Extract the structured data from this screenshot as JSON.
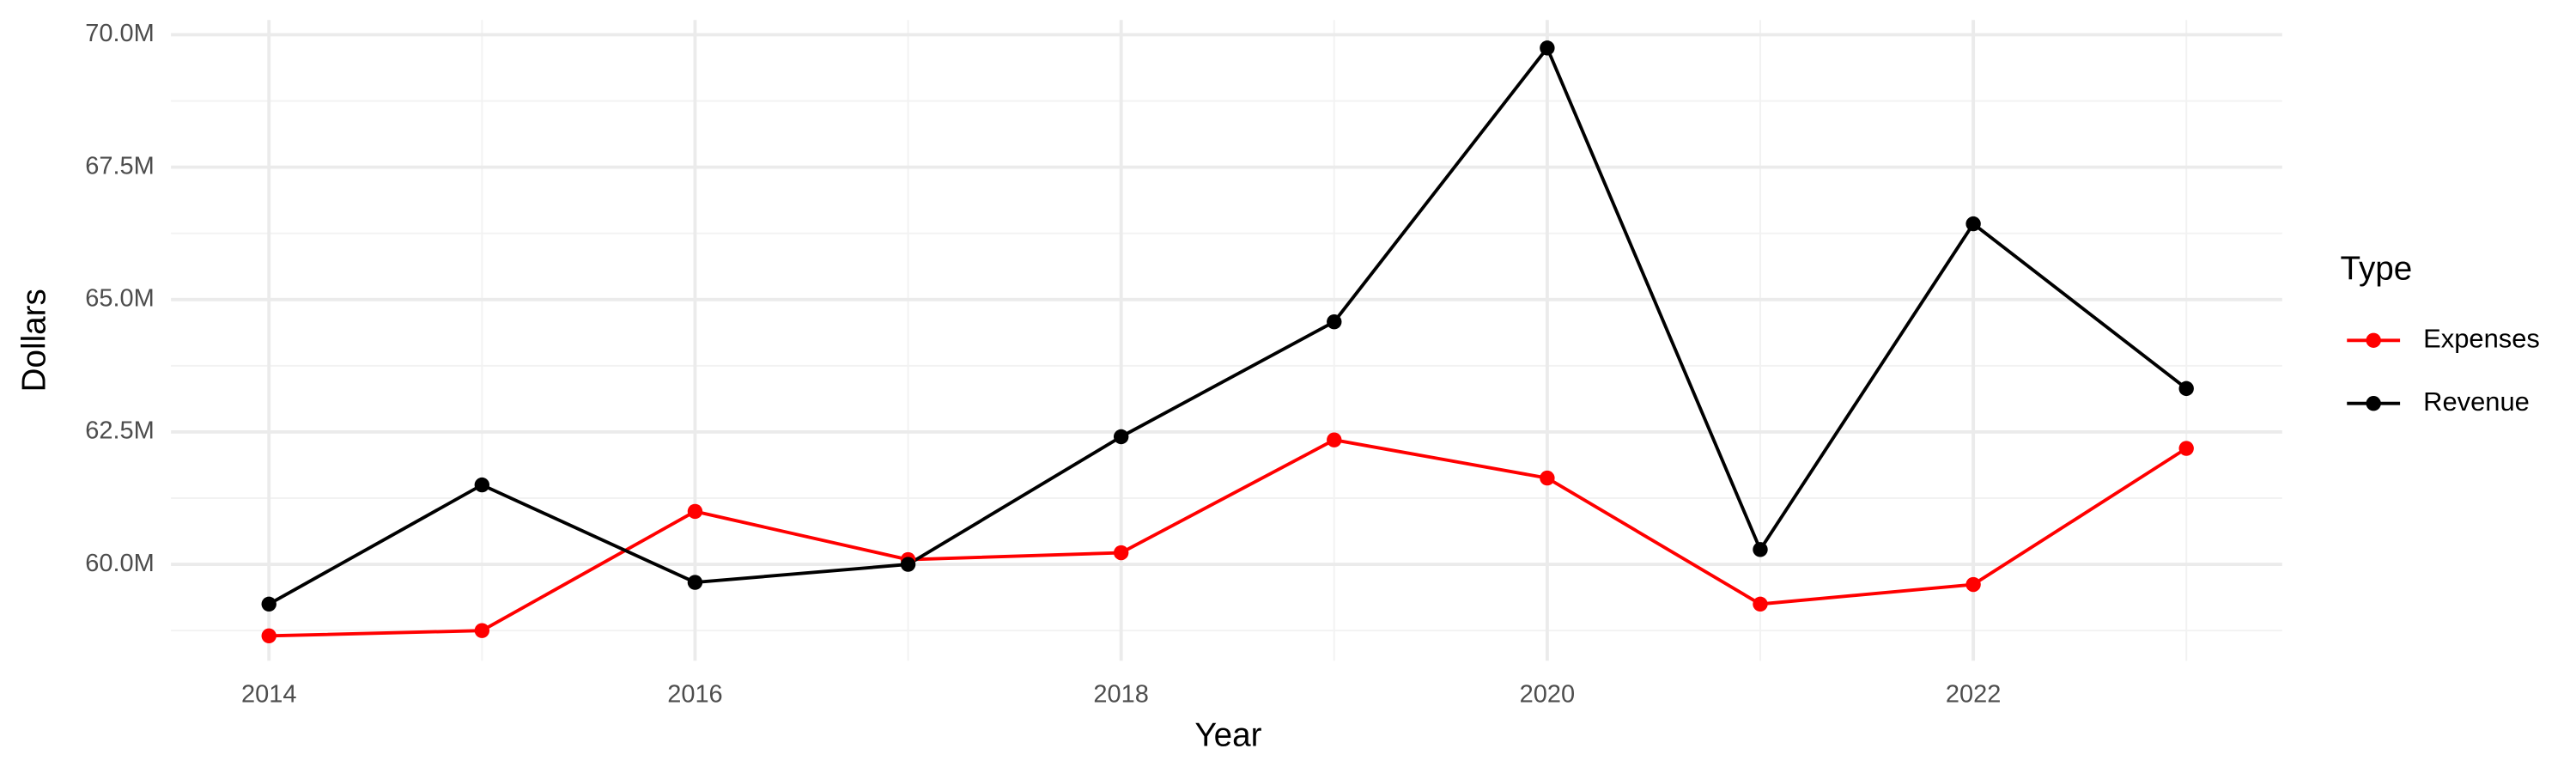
{
  "chart_data": {
    "type": "line",
    "x_label": "Year",
    "y_label": "Dollars",
    "legend_title": "Type",
    "legend_position": "right",
    "x": [
      2014,
      2015,
      2016,
      2017,
      2018,
      2019,
      2020,
      2021,
      2022,
      2023
    ],
    "series": [
      {
        "name": "Expenses",
        "color": "#ff0000",
        "values": [
          58650000,
          58750000,
          61000000,
          60090000,
          60220000,
          62350000,
          61630000,
          59250000,
          59620000,
          62190000
        ]
      },
      {
        "name": "Revenue",
        "color": "#000000",
        "values": [
          59250000,
          61500000,
          59660000,
          60000000,
          62410000,
          64580000,
          69750000,
          60280000,
          66430000,
          63320000
        ]
      }
    ],
    "xlim": [
      2013.54,
      2023.45
    ],
    "xticks": [
      2014,
      2016,
      2018,
      2020,
      2022
    ],
    "ylim": [
      58180000,
      70280000
    ],
    "yticks": [
      {
        "value": 60000000,
        "label": "60.0M"
      },
      {
        "value": 62500000,
        "label": "62.5M"
      },
      {
        "value": 65000000,
        "label": "65.0M"
      },
      {
        "value": 67500000,
        "label": "67.5M"
      },
      {
        "value": 70000000,
        "label": "70.0M"
      }
    ],
    "grid": true
  }
}
